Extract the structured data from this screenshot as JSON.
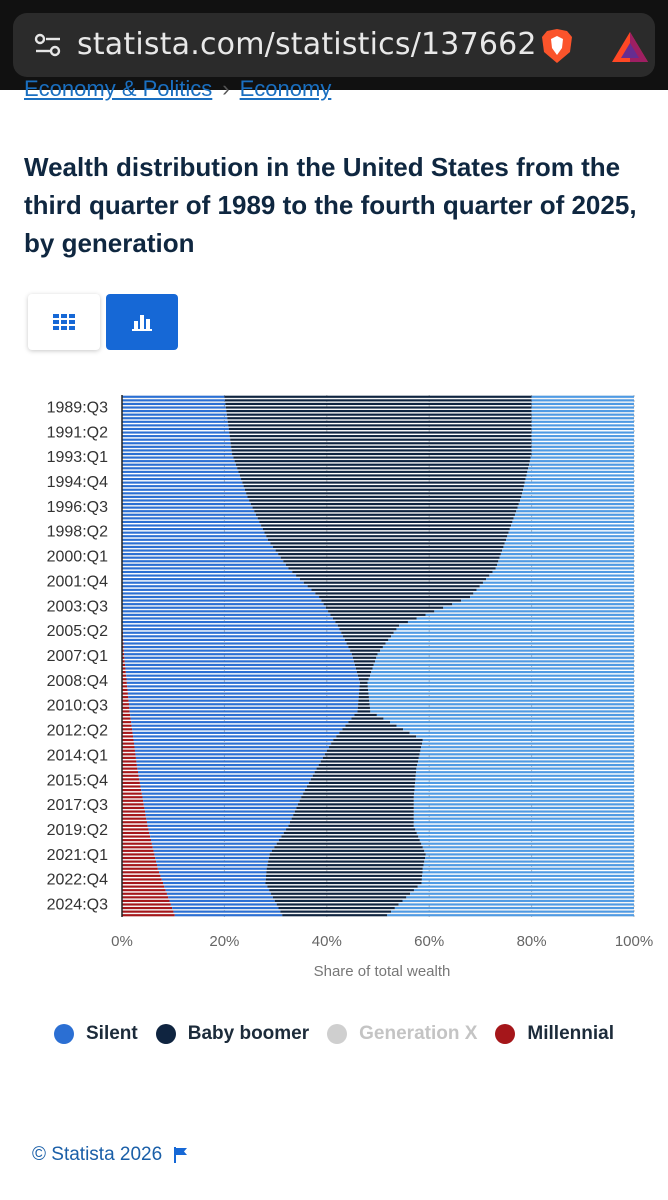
{
  "browser": {
    "url": "statista.com/statistics/137662"
  },
  "breadcrumb": {
    "items": [
      "Economy & Politics",
      "Economy"
    ],
    "separator": "›"
  },
  "page_title": "Wealth distribution in the United States from the third quarter of 1989 to the fourth quarter of 2025, by generation",
  "view_toggle": {
    "table_icon": "grid-icon",
    "chart_icon": "bar-chart-icon",
    "active": "chart"
  },
  "footer": {
    "copyright": "© Statista 2026",
    "icon": "flag-icon"
  },
  "chart_data": {
    "type": "bar",
    "orientation": "horizontal",
    "stacked": true,
    "xlabel": "Share of total wealth",
    "xlim": [
      0,
      100
    ],
    "x_ticks": [
      "0%",
      "20%",
      "40%",
      "60%",
      "80%",
      "100%"
    ],
    "y_ticks": [
      "1989:Q3",
      "1991:Q2",
      "1993:Q1",
      "1994:Q4",
      "1996:Q3",
      "1998:Q2",
      "2000:Q1",
      "2001:Q4",
      "2003:Q3",
      "2005:Q2",
      "2007:Q1",
      "2008:Q4",
      "2010:Q3",
      "2012:Q2",
      "2014:Q1",
      "2015:Q4",
      "2017:Q3",
      "2019:Q2",
      "2021:Q1",
      "2022:Q4",
      "2024:Q3"
    ],
    "grid": true,
    "legend_position": "bottom",
    "period_range": [
      "1989:Q3",
      "2025:Q4"
    ],
    "series": [
      {
        "name": "Millennial",
        "color": "#a5161a",
        "anchors": [
          [
            0,
            0
          ],
          [
            60,
            0
          ],
          [
            72,
            0.4
          ],
          [
            88,
            1.5
          ],
          [
            104,
            3
          ],
          [
            120,
            5
          ],
          [
            132,
            7
          ],
          [
            145,
            10.3
          ]
        ]
      },
      {
        "name": "Silent",
        "color": "#2b6fd3",
        "anchors": [
          [
            0,
            20
          ],
          [
            16,
            21.5
          ],
          [
            28,
            24.5
          ],
          [
            40,
            28.5
          ],
          [
            48,
            32.5
          ],
          [
            56,
            38.5
          ],
          [
            64,
            42
          ],
          [
            72,
            44.5
          ],
          [
            80,
            45.5
          ],
          [
            88,
            44.5
          ],
          [
            96,
            39
          ],
          [
            104,
            35
          ],
          [
            112,
            31
          ],
          [
            120,
            27.5
          ],
          [
            128,
            22.5
          ],
          [
            136,
            20
          ],
          [
            145,
            21
          ]
        ]
      },
      {
        "name": "Baby boomer",
        "color": "#0f2440",
        "anchors": [
          [
            0,
            60
          ],
          [
            16,
            58.5
          ],
          [
            28,
            53.5
          ],
          [
            40,
            46.5
          ],
          [
            48,
            40.5
          ],
          [
            56,
            29.5
          ],
          [
            64,
            12
          ],
          [
            72,
            5
          ],
          [
            80,
            1.5
          ],
          [
            88,
            2.5
          ],
          [
            96,
            17.5
          ],
          [
            104,
            19.5
          ],
          [
            120,
            24.5
          ],
          [
            128,
            30.5
          ],
          [
            136,
            30.5
          ],
          [
            145,
            20.5
          ]
        ]
      },
      {
        "name": "Generation X",
        "color": "#c9c9c9",
        "inactive": true
      }
    ],
    "bar_colors": [
      "#2b6fd3",
      "#0f2440",
      "#4f9ae3"
    ]
  }
}
